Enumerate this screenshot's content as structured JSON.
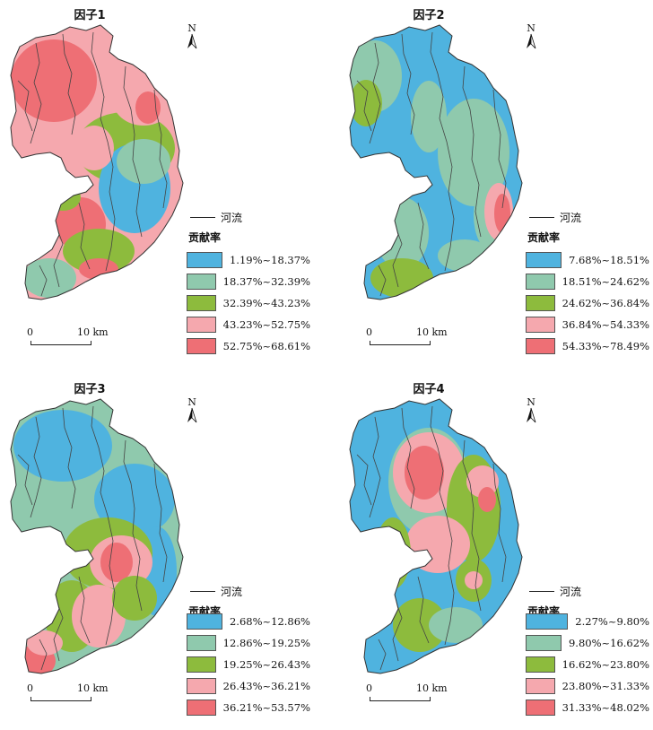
{
  "palette": {
    "c1": "#4fb3df",
    "c2": "#8fc9ad",
    "c3": "#8dbb3d",
    "c4": "#f5a8ae",
    "c5": "#ee6f75",
    "boundary": "#333333",
    "river": "#444444"
  },
  "north_label": "N",
  "river_label": "河流",
  "legend_title": "贡献率",
  "scale": {
    "zero": "0",
    "length": "10 km"
  },
  "panels": [
    {
      "title": "因子1",
      "classes": [
        "1.19%~18.37%",
        "18.37%~32.39%",
        "32.39%~43.23%",
        "43.23%~52.75%",
        "52.75%~68.61%"
      ]
    },
    {
      "title": "因子2",
      "classes": [
        "7.68%~18.51%",
        "18.51%~24.62%",
        "24.62%~36.84%",
        "36.84%~54.33%",
        "54.33%~78.49%"
      ]
    },
    {
      "title": "因子3",
      "classes": [
        "2.68%~12.86%",
        "12.86%~19.25%",
        "19.25%~26.43%",
        "26.43%~36.21%",
        "36.21%~53.57%"
      ]
    },
    {
      "title": "因子4",
      "classes": [
        "2.27%~9.80%",
        "9.80%~16.62%",
        "16.62%~23.80%",
        "23.80%~31.33%",
        "31.33%~48.02%"
      ]
    }
  ]
}
